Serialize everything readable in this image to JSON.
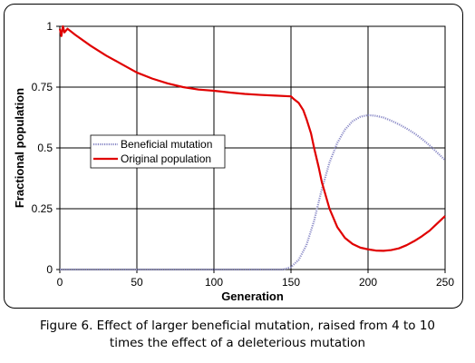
{
  "chart_data": {
    "type": "line",
    "xlabel": "Generation",
    "ylabel": "Fractional population",
    "xlim": [
      0,
      250
    ],
    "ylim": [
      0,
      1
    ],
    "xticks": [
      0,
      50,
      100,
      150,
      200,
      250
    ],
    "yticks": [
      0,
      0.25,
      0.5,
      0.75,
      1
    ],
    "ytick_labels": [
      "0",
      "0.25",
      "0.5",
      "0.75",
      "1"
    ],
    "grid": true,
    "legend_position": "middle-left",
    "series": [
      {
        "name": "Beneficial mutation",
        "color": "#8c8cc8",
        "style": "dotted",
        "x": [
          0,
          50,
          100,
          145,
          150,
          155,
          160,
          165,
          170,
          175,
          180,
          185,
          190,
          195,
          200,
          205,
          210,
          215,
          220,
          225,
          230,
          235,
          240,
          245,
          250
        ],
        "y": [
          0,
          0,
          0,
          0,
          0.01,
          0.04,
          0.1,
          0.2,
          0.33,
          0.44,
          0.52,
          0.575,
          0.61,
          0.628,
          0.635,
          0.632,
          0.625,
          0.612,
          0.597,
          0.58,
          0.56,
          0.537,
          0.51,
          0.48,
          0.45
        ]
      },
      {
        "name": "Original population",
        "color": "#e00000",
        "style": "solid",
        "x": [
          0,
          1,
          2,
          3,
          5,
          10,
          20,
          30,
          40,
          50,
          60,
          70,
          80,
          90,
          100,
          110,
          120,
          130,
          140,
          150,
          152,
          155,
          158,
          160,
          163,
          165,
          168,
          170,
          175,
          180,
          185,
          190,
          195,
          200,
          205,
          210,
          215,
          220,
          225,
          230,
          235,
          240,
          245,
          250
        ],
        "y": [
          0.99,
          0.96,
          1.0,
          0.975,
          0.99,
          0.965,
          0.92,
          0.88,
          0.845,
          0.81,
          0.785,
          0.765,
          0.75,
          0.74,
          0.735,
          0.728,
          0.722,
          0.718,
          0.715,
          0.712,
          0.7,
          0.685,
          0.655,
          0.62,
          0.56,
          0.5,
          0.42,
          0.36,
          0.25,
          0.175,
          0.13,
          0.105,
          0.09,
          0.083,
          0.078,
          0.077,
          0.08,
          0.087,
          0.1,
          0.117,
          0.137,
          0.16,
          0.19,
          0.22
        ]
      }
    ]
  },
  "caption": {
    "line1": "Figure 6. Effect of larger beneficial mutation, raised from 4 to 10",
    "line2": "times the effect of a deleterious mutation"
  }
}
